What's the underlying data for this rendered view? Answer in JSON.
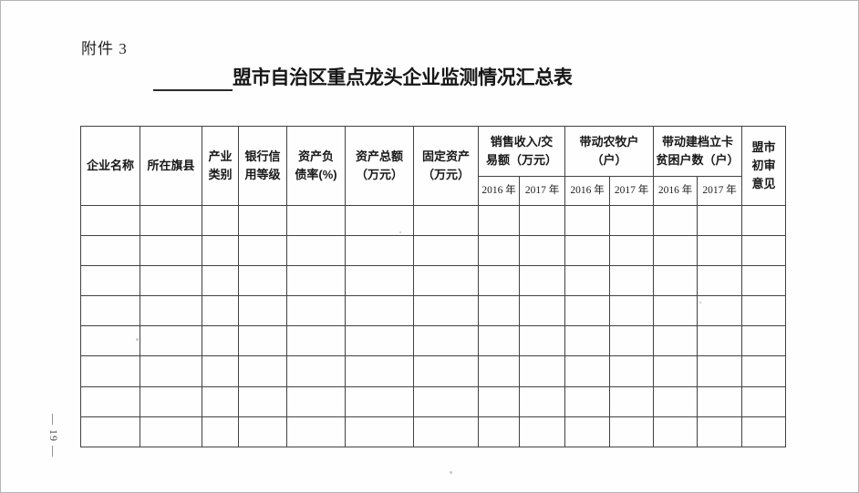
{
  "document": {
    "attachment_label": "附件 3",
    "title": "盟市自治区重点龙头企业监测情况汇总表",
    "page_number": "— 19 —"
  },
  "table": {
    "header": {
      "enterprise_name": "企业名称",
      "county": "所在旗县",
      "industry_l1": "产业",
      "industry_l2": "类别",
      "bank_credit_l1": "银行信",
      "bank_credit_l2": "用等级",
      "debt_ratio_l1": "资产负",
      "debt_ratio_l2": "债率(%)",
      "total_assets_l1": "资产总额",
      "total_assets_l2": "（万元）",
      "fixed_assets_l1": "固定资产",
      "fixed_assets_l2": "（万元）",
      "sales_l1": "销售收入/交",
      "sales_l2": "易额（万元）",
      "farm_households_l1": "带动农牧户",
      "farm_households_l2": "（户）",
      "poor_households_l1": "带动建档立卡",
      "poor_households_l2": "贫困户数（户）",
      "review_l1": "盟市",
      "review_l2": "初审",
      "review_l3": "意见",
      "year_2016": "2016 年",
      "year_2017": "2017 年"
    },
    "body": {
      "row_count": 8,
      "col_count": 14
    }
  }
}
